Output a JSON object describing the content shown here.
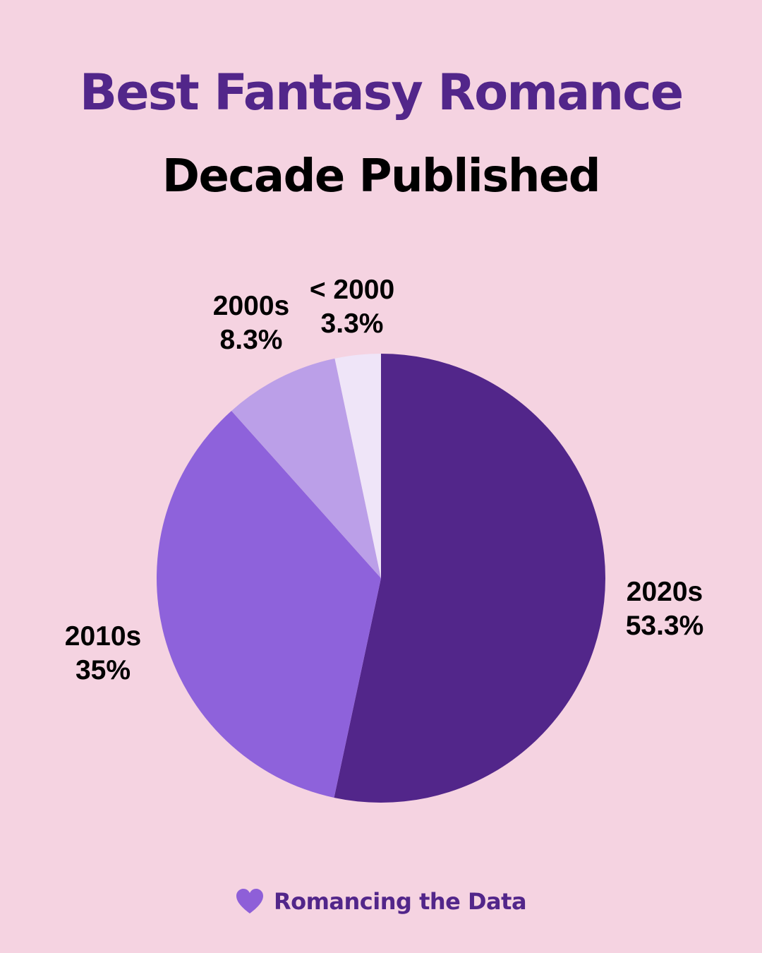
{
  "colors": {
    "background": "#f5d3e1",
    "title": "#52268a",
    "brand": "#52268a",
    "heart": "#8e5fd8"
  },
  "header": {
    "title": "Best Fantasy Romance",
    "subtitle": "Decade Published"
  },
  "chart_data": {
    "type": "pie",
    "title": "Best Fantasy Romance",
    "subtitle": "Decade Published",
    "slices": [
      {
        "label": "2020s",
        "value": 53.3,
        "display": "53.3%",
        "color": "#52268a"
      },
      {
        "label": "2010s",
        "value": 35.0,
        "display": "35%",
        "color": "#8e62db"
      },
      {
        "label": "2000s",
        "value": 8.3,
        "display": "8.3%",
        "color": "#bb9fe8"
      },
      {
        "label": "< 2000",
        "value": 3.3,
        "display": "3.3%",
        "color": "#efe5f8"
      }
    ],
    "start": "12 o'clock",
    "direction": "clockwise"
  },
  "footer": {
    "icon": "heart-icon",
    "brand": "Romancing the Data"
  }
}
